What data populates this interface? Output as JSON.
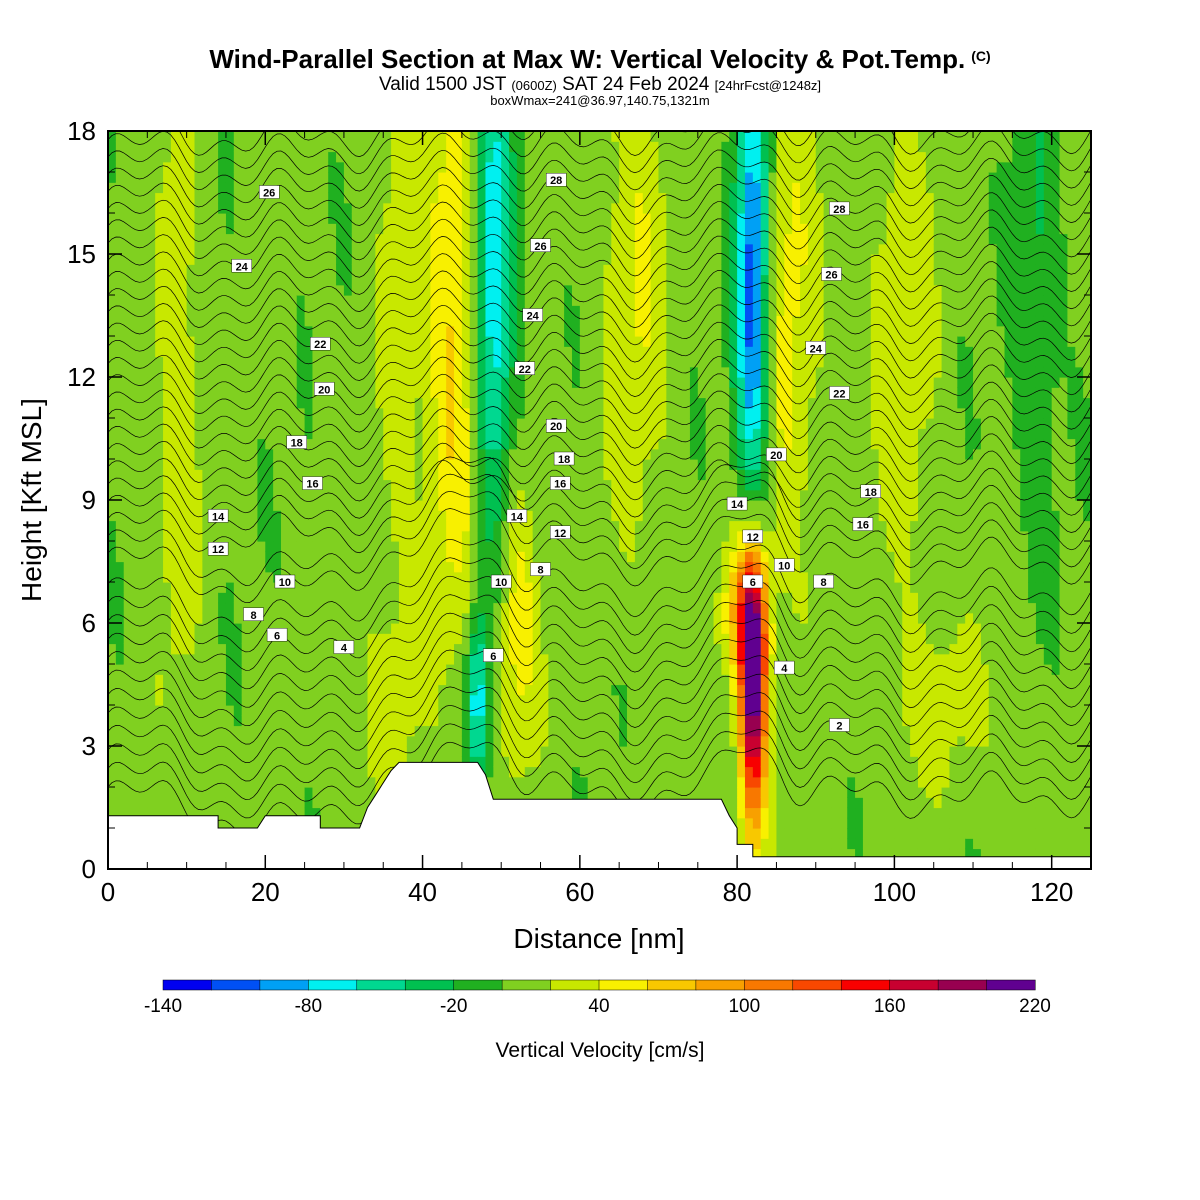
{
  "header": {
    "title": "Wind-Parallel Section at Max W: Vertical Velocity & Pot.Temp.",
    "copyright": "(C)",
    "valid_prefix": "Valid 1500 JST",
    "valid_utc": "(0600Z)",
    "valid_date": "SAT 24 Feb 2024",
    "forecast": "[24hrFcst@1248z]",
    "boxw": "boxWmax=241@36.97,140.75,1321m"
  },
  "chart_data": {
    "type": "heatmap",
    "xlabel": "Distance [nm]",
    "ylabel": "Height [Kft MSL]",
    "xlim": [
      0,
      125
    ],
    "ylim": [
      0,
      18
    ],
    "x_ticks": [
      "0",
      "20",
      "40",
      "60",
      "80",
      "100",
      "120"
    ],
    "y_ticks": [
      "0",
      "3",
      "6",
      "9",
      "12",
      "15",
      "18"
    ],
    "colorbar": {
      "title": "Vertical Velocity [cm/s]",
      "labels": [
        "-140",
        "-80",
        "-20",
        "40",
        "100",
        "160",
        "220"
      ],
      "levels": [
        -140,
        -120,
        -100,
        -80,
        -60,
        -40,
        -20,
        0,
        20,
        40,
        60,
        80,
        100,
        120,
        140,
        160,
        180,
        200,
        220
      ],
      "colors": [
        "#0000f0",
        "#0050f5",
        "#00a0f5",
        "#00f0f0",
        "#00d890",
        "#00c050",
        "#20b020",
        "#80d020",
        "#c8e800",
        "#f8f000",
        "#f8c800",
        "#f8a000",
        "#f87800",
        "#f84800",
        "#f80000",
        "#c80030",
        "#980050",
        "#600090"
      ]
    },
    "terrain_kft": [
      [
        0,
        1.3
      ],
      [
        14,
        1.3
      ],
      [
        14,
        1.0
      ],
      [
        19,
        1.0
      ],
      [
        20,
        1.3
      ],
      [
        27,
        1.3
      ],
      [
        27,
        1.0
      ],
      [
        32,
        1.0
      ],
      [
        33,
        1.5
      ],
      [
        34,
        1.8
      ],
      [
        35,
        2.1
      ],
      [
        36,
        2.4
      ],
      [
        37,
        2.6
      ],
      [
        47,
        2.6
      ],
      [
        48,
        2.3
      ],
      [
        49,
        1.7
      ],
      [
        65,
        1.7
      ],
      [
        78,
        1.7
      ],
      [
        79,
        1.3
      ],
      [
        80,
        1.0
      ],
      [
        80,
        0.6
      ],
      [
        82,
        0.6
      ],
      [
        82,
        0.3
      ],
      [
        125,
        0.3
      ]
    ],
    "w_features": [
      {
        "x": 82,
        "y": 4.5,
        "sx": 1.2,
        "sy": 2.5,
        "w": 220
      },
      {
        "x": 81,
        "y": 6.2,
        "sx": 2.0,
        "sy": 1.2,
        "w": 80
      },
      {
        "x": 49,
        "y": 14.0,
        "sx": 1.8,
        "sy": 4.5,
        "w": -90
      },
      {
        "x": 47,
        "y": 4.2,
        "sx": 1.0,
        "sy": 1.5,
        "w": -80
      },
      {
        "x": 82,
        "y": 14.0,
        "sx": 1.5,
        "sy": 4.5,
        "w": -130
      },
      {
        "x": 44,
        "y": 13.0,
        "sx": 2.5,
        "sy": 5.0,
        "w": 60
      },
      {
        "x": 52,
        "y": 6.0,
        "sx": 2.0,
        "sy": 2.5,
        "w": 50
      },
      {
        "x": 86,
        "y": 13.5,
        "sx": 3.0,
        "sy": 5.0,
        "w": 40
      },
      {
        "x": 9,
        "y": 12.0,
        "sx": 2.0,
        "sy": 6.0,
        "w": 30
      },
      {
        "x": 37,
        "y": 13.0,
        "sx": 2.0,
        "sy": 6.0,
        "w": 25
      },
      {
        "x": 67,
        "y": 14.5,
        "sx": 3.0,
        "sy": 4.5,
        "w": 35
      },
      {
        "x": 101,
        "y": 13.5,
        "sx": 3.0,
        "sy": 5.0,
        "w": 30
      },
      {
        "x": 118,
        "y": 14.0,
        "sx": 2.0,
        "sy": 4.0,
        "w": -30
      },
      {
        "x": 106,
        "y": 4.0,
        "sx": 6.0,
        "sy": 1.5,
        "w": 20
      },
      {
        "x": 35,
        "y": 4.0,
        "sx": 2.5,
        "sy": 1.5,
        "w": 25
      }
    ],
    "contour_labels": [
      {
        "x": 20.5,
        "y": 16.5,
        "t": "26"
      },
      {
        "x": 17,
        "y": 14.7,
        "t": "24"
      },
      {
        "x": 27,
        "y": 12.8,
        "t": "22"
      },
      {
        "x": 27.5,
        "y": 11.7,
        "t": "20"
      },
      {
        "x": 24,
        "y": 10.4,
        "t": "18"
      },
      {
        "x": 26,
        "y": 9.4,
        "t": "16"
      },
      {
        "x": 14,
        "y": 8.6,
        "t": "14"
      },
      {
        "x": 14,
        "y": 7.8,
        "t": "12"
      },
      {
        "x": 22.5,
        "y": 7.0,
        "t": "10"
      },
      {
        "x": 18.5,
        "y": 6.2,
        "t": "8"
      },
      {
        "x": 21.5,
        "y": 5.7,
        "t": "6"
      },
      {
        "x": 30,
        "y": 5.4,
        "t": "4"
      },
      {
        "x": 57,
        "y": 16.8,
        "t": "28"
      },
      {
        "x": 55,
        "y": 15.2,
        "t": "26"
      },
      {
        "x": 54,
        "y": 13.5,
        "t": "24"
      },
      {
        "x": 53,
        "y": 12.2,
        "t": "22"
      },
      {
        "x": 57,
        "y": 10.8,
        "t": "20"
      },
      {
        "x": 58,
        "y": 10.0,
        "t": "18"
      },
      {
        "x": 57.5,
        "y": 9.4,
        "t": "16"
      },
      {
        "x": 52,
        "y": 8.6,
        "t": "14"
      },
      {
        "x": 57.5,
        "y": 8.2,
        "t": "12"
      },
      {
        "x": 50,
        "y": 7.0,
        "t": "10"
      },
      {
        "x": 55,
        "y": 7.3,
        "t": "8"
      },
      {
        "x": 49,
        "y": 5.2,
        "t": "6"
      },
      {
        "x": 93,
        "y": 16.1,
        "t": "28"
      },
      {
        "x": 92,
        "y": 14.5,
        "t": "26"
      },
      {
        "x": 90,
        "y": 12.7,
        "t": "24"
      },
      {
        "x": 93,
        "y": 11.6,
        "t": "22"
      },
      {
        "x": 85,
        "y": 10.1,
        "t": "20"
      },
      {
        "x": 97,
        "y": 9.2,
        "t": "18"
      },
      {
        "x": 96,
        "y": 8.4,
        "t": "16"
      },
      {
        "x": 80,
        "y": 8.9,
        "t": "14"
      },
      {
        "x": 82,
        "y": 8.1,
        "t": "12"
      },
      {
        "x": 86,
        "y": 7.4,
        "t": "10"
      },
      {
        "x": 91,
        "y": 7.0,
        "t": "8"
      },
      {
        "x": 82,
        "y": 7.0,
        "t": "6"
      },
      {
        "x": 86,
        "y": 4.9,
        "t": "4"
      },
      {
        "x": 93,
        "y": 3.5,
        "t": "2"
      }
    ]
  }
}
